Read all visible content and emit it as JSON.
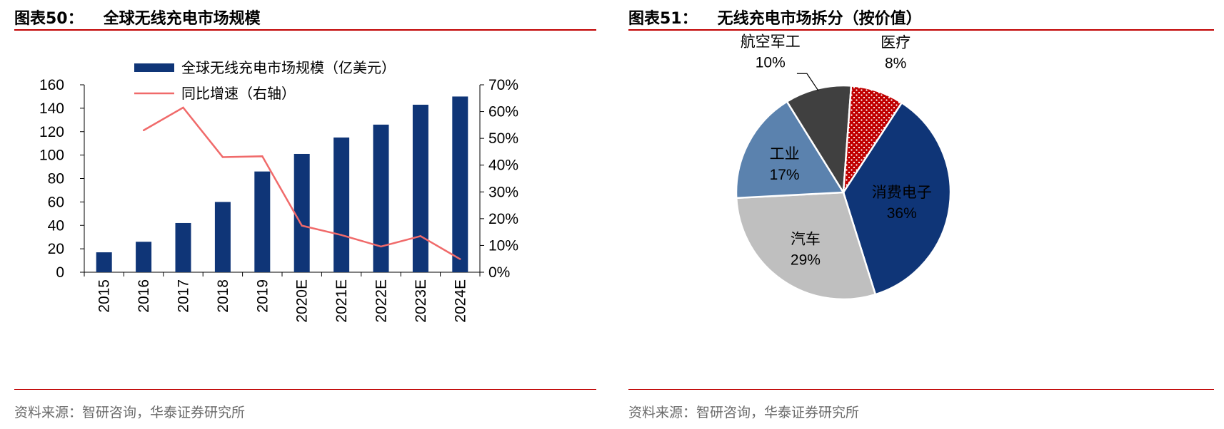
{
  "left": {
    "fig_no": "图表50：",
    "title": "全球无线充电市场规模",
    "source": "资料来源：智研咨询，华泰证券研究所"
  },
  "right": {
    "fig_no": "图表51：",
    "title": "无线充电市场拆分（按价值）",
    "source": "资料来源：智研咨询，华泰证券研究所"
  },
  "colors": {
    "bar": "#0f3577",
    "line": "#f06a6a",
    "rule": "#c00000"
  },
  "chart_data": [
    {
      "type": "bar",
      "title": "全球无线充电市场规模",
      "categories": [
        "2015",
        "2016",
        "2017",
        "2018",
        "2019",
        "2020E",
        "2021E",
        "2022E",
        "2023E",
        "2024E"
      ],
      "series": [
        {
          "name": "全球无线充电市场规模（亿美元）",
          "type": "bar",
          "axis": "left",
          "values": [
            17,
            26,
            42,
            60,
            86,
            101,
            115,
            126,
            143,
            150
          ]
        },
        {
          "name": "同比增速（右轴）",
          "type": "line",
          "axis": "right",
          "values": [
            null,
            53,
            61.5,
            43,
            43.3,
            17.4,
            13.9,
            9.6,
            13.5,
            4.9
          ]
        }
      ],
      "ylim": [
        0,
        160
      ],
      "yticks": [
        "0",
        "20",
        "40",
        "60",
        "80",
        "100",
        "120",
        "140",
        "160"
      ],
      "y2lim": [
        0,
        70
      ],
      "y2ticks": [
        "0%",
        "10%",
        "20%",
        "30%",
        "40%",
        "50%",
        "60%",
        "70%"
      ],
      "legend_position": "top"
    },
    {
      "type": "pie",
      "title": "无线充电市场拆分（按价值）",
      "slices": [
        {
          "label": "消费电子",
          "value": 36,
          "value_label": "36%",
          "color": "#0f3577"
        },
        {
          "label": "汽车",
          "value": 29,
          "value_label": "29%",
          "color": "#bfbfbf"
        },
        {
          "label": "工业",
          "value": 17,
          "value_label": "17%",
          "color": "#5b82ae"
        },
        {
          "label": "航空军工",
          "value": 10,
          "value_label": "10%",
          "color": "#404040"
        },
        {
          "label": "医疗",
          "value": 8,
          "value_label": "8%",
          "color": "#c00000",
          "pattern": "dots"
        }
      ]
    }
  ]
}
